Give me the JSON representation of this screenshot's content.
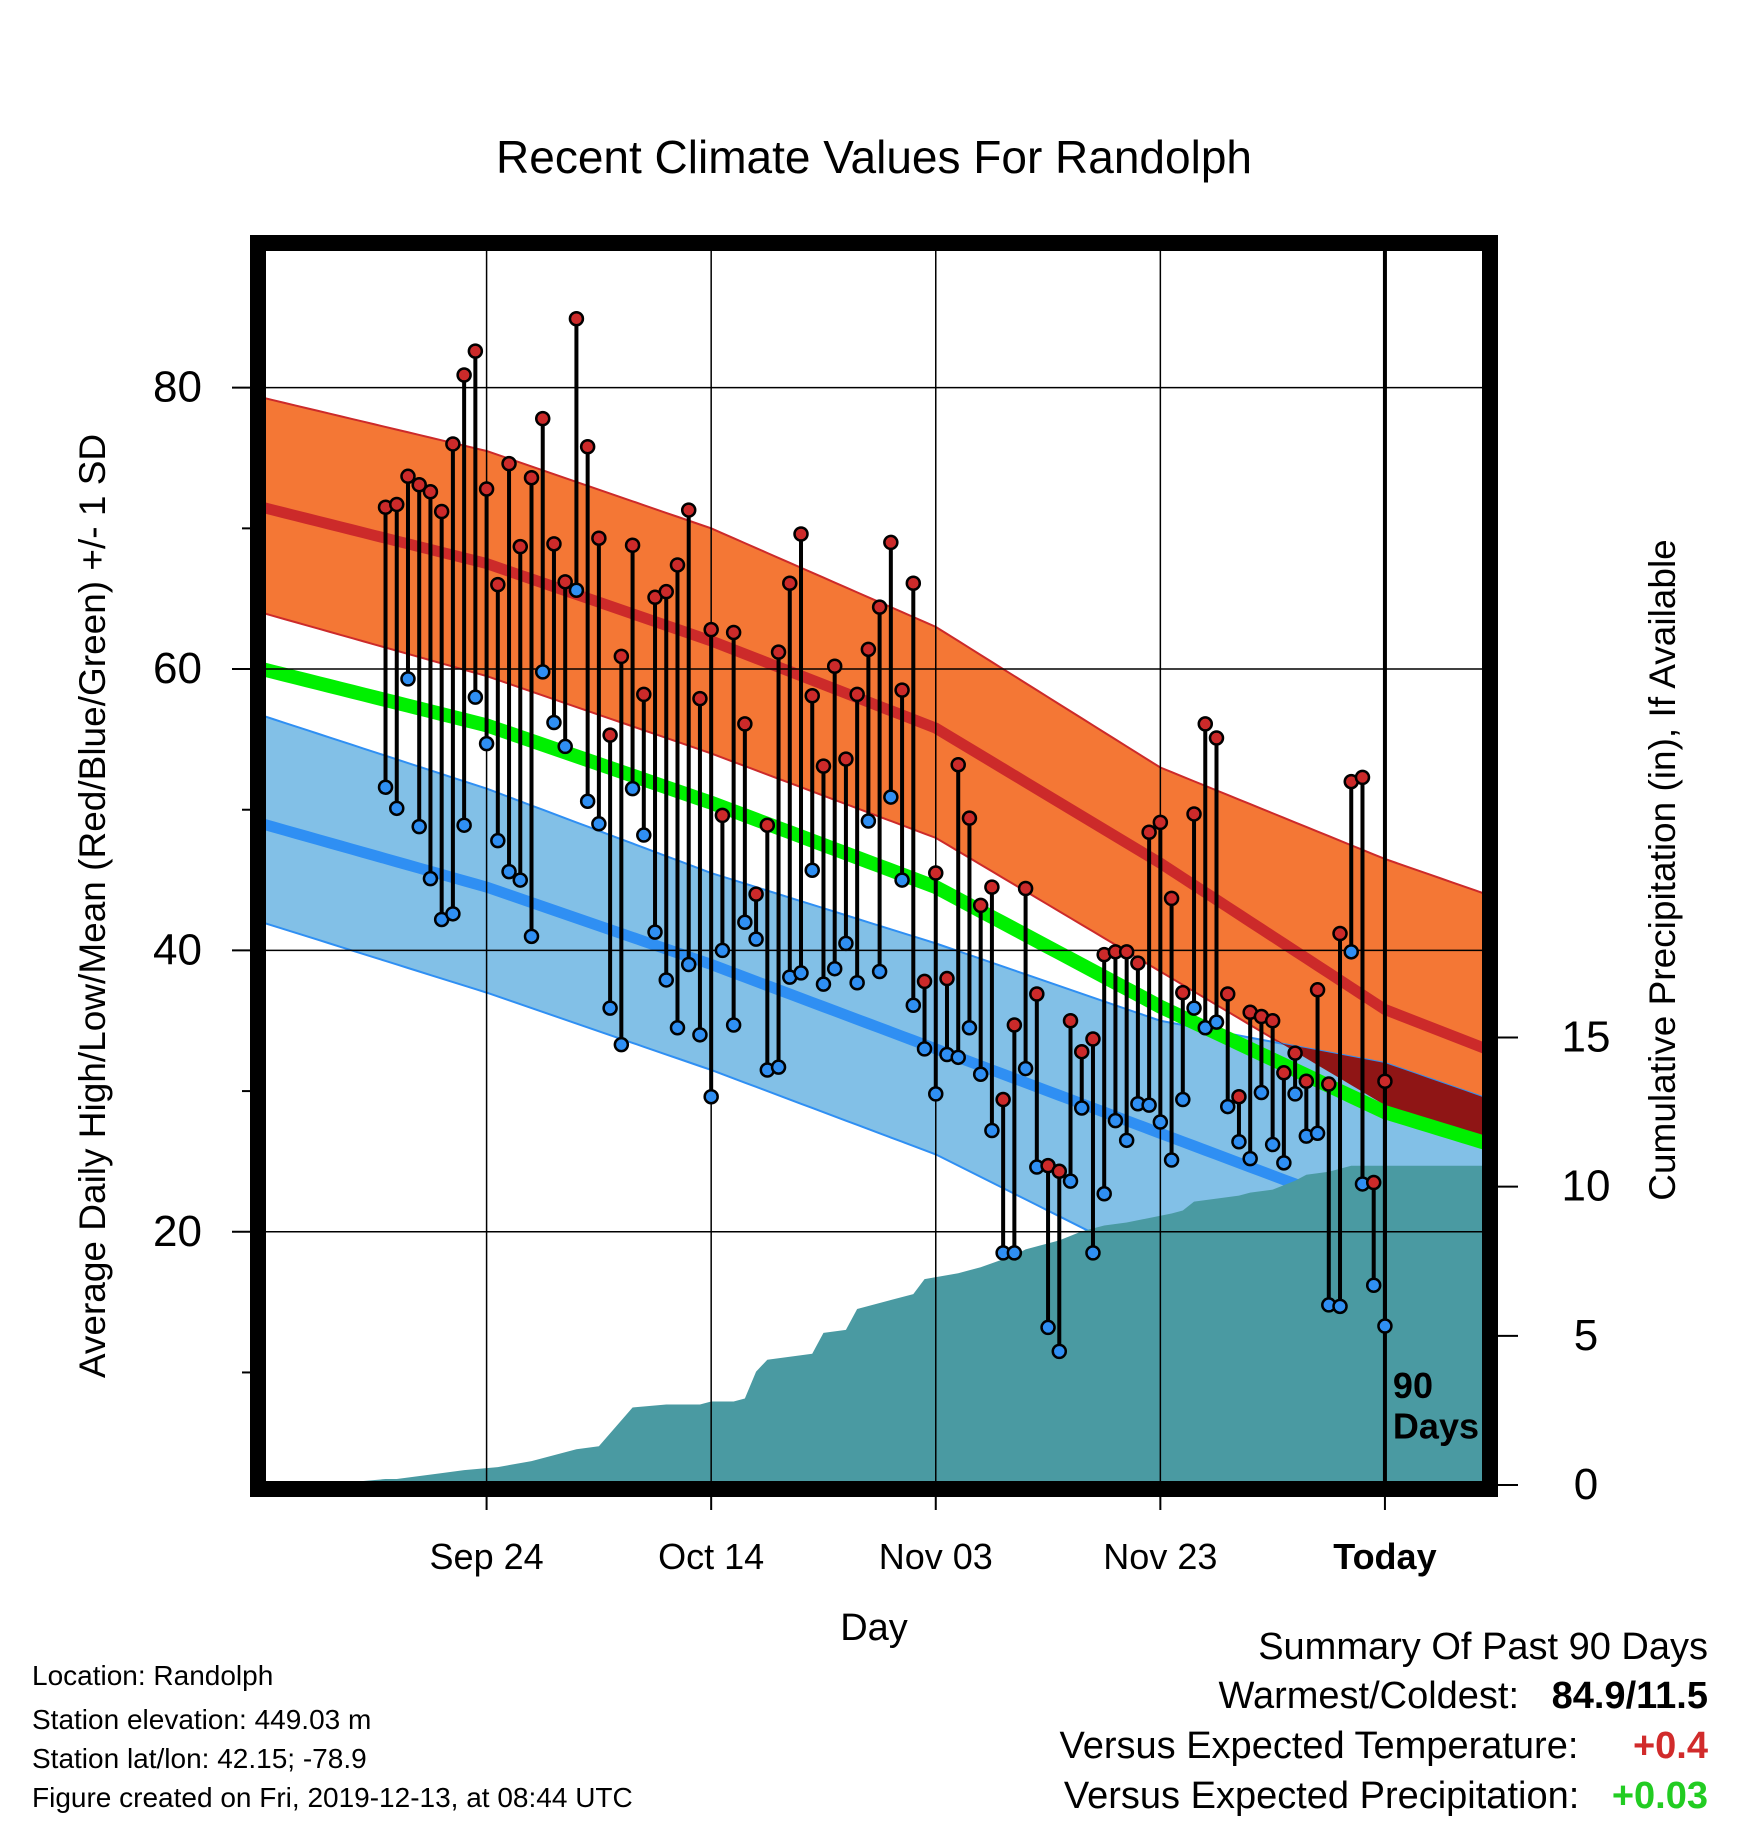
{
  "title": "Recent Climate Values For Randolph",
  "chart_data": {
    "type": "line",
    "title": "Recent Climate Values For Randolph",
    "xlabel": "Day",
    "ylabel": "Average Daily High/Low/Mean (Red/Blue/Green) +/- 1 SD",
    "y2label": "Cumulative Precipitation (in), If Available",
    "x_range": [
      -100,
      9
    ],
    "x_ticks": [
      {
        "day": -80,
        "label": "Sep 24"
      },
      {
        "day": -60,
        "label": "Oct 14"
      },
      {
        "day": -40,
        "label": "Nov 03"
      },
      {
        "day": -20,
        "label": "Nov 23"
      },
      {
        "day": 0,
        "label": "Today"
      }
    ],
    "x_units": "days relative to Today (2019-12-13)",
    "ylim": [
      2,
      90
    ],
    "y_ticks": [
      20,
      40,
      60,
      80
    ],
    "y2lim": [
      0,
      41.5
    ],
    "y2_ticks": [
      0,
      5,
      10,
      15
    ],
    "grid": true,
    "marker_label": "90 Days",
    "normal_high": {
      "day": [
        -100,
        -80,
        -60,
        -40,
        -20,
        0,
        9
      ],
      "mean": [
        71.5,
        67.5,
        62.0,
        55.8,
        46.2,
        35.8,
        33.0
      ],
      "upper": [
        79.3,
        75.5,
        70.0,
        63.0,
        53.0,
        46.5,
        44.0
      ],
      "lower": [
        64.0,
        59.5,
        54.0,
        48.0,
        38.5,
        29.0,
        26.7
      ]
    },
    "normal_mean": {
      "day": [
        -100,
        -80,
        -60,
        -40,
        -20,
        0,
        9
      ],
      "mean": [
        60.0,
        56.0,
        50.5,
        44.5,
        36.0,
        28.5,
        26.3
      ]
    },
    "normal_low": {
      "day": [
        -100,
        -80,
        -60,
        -40,
        -20,
        0,
        9
      ],
      "mean": [
        49.0,
        44.5,
        39.0,
        33.0,
        27.0,
        21.0,
        19.5
      ],
      "upper": [
        56.7,
        51.5,
        45.5,
        40.5,
        35.0,
        32.0,
        29.5
      ],
      "lower": [
        42.0,
        37.0,
        31.5,
        25.5,
        17.5,
        10.0,
        9.0
      ]
    },
    "cumulative_precipitation": {
      "day": [
        -100,
        -92,
        -89,
        -88,
        -84,
        -82,
        -79,
        -76,
        -72,
        -70,
        -67,
        -64,
        -61,
        -60,
        -58,
        -57,
        -56,
        -55,
        -51,
        -50,
        -48,
        -47,
        -44,
        -42,
        -41,
        -38,
        -36,
        -33,
        -32,
        -29,
        -27,
        -25,
        -23,
        -19,
        -18,
        -17,
        -15,
        -13,
        -12,
        -10,
        -8,
        -7,
        -5,
        -3,
        -2,
        -1,
        9
      ],
      "value": [
        0.0,
        0.1,
        0.2,
        0.2,
        0.4,
        0.5,
        0.6,
        0.8,
        1.2,
        1.3,
        2.6,
        2.7,
        2.7,
        2.8,
        2.8,
        2.9,
        3.8,
        4.2,
        4.4,
        5.1,
        5.2,
        5.9,
        6.2,
        6.4,
        6.9,
        7.1,
        7.3,
        7.7,
        7.9,
        8.2,
        8.5,
        8.7,
        8.8,
        9.1,
        9.2,
        9.5,
        9.6,
        9.7,
        9.8,
        9.9,
        10.2,
        10.4,
        10.5,
        10.7,
        10.7,
        10.7,
        10.7
      ]
    },
    "daily": {
      "day": [
        -89,
        -88,
        -87,
        -86,
        -85,
        -84,
        -83,
        -82,
        -81,
        -80,
        -79,
        -78,
        -77,
        -76,
        -75,
        -74,
        -73,
        -72,
        -71,
        -70,
        -69,
        -68,
        -67,
        -66,
        -65,
        -64,
        -63,
        -62,
        -61,
        -60,
        -59,
        -58,
        -57,
        -56,
        -55,
        -54,
        -53,
        -52,
        -51,
        -50,
        -49,
        -48,
        -47,
        -46,
        -45,
        -44,
        -43,
        -42,
        -41,
        -40,
        -39,
        -38,
        -37,
        -36,
        -35,
        -34,
        -33,
        -32,
        -31,
        -30,
        -29,
        -28,
        -27,
        -26,
        -25,
        -24,
        -23,
        -22,
        -21,
        -20,
        -19,
        -18,
        -17,
        -16,
        -15,
        -14,
        -13,
        -12,
        -11,
        -10,
        -9,
        -8,
        -7,
        -6,
        -5,
        -4,
        -3,
        -2,
        -1,
        0
      ],
      "high": [
        71.5,
        71.7,
        73.7,
        73.1,
        72.6,
        71.2,
        76.0,
        80.9,
        82.6,
        72.8,
        66.0,
        74.6,
        68.7,
        73.6,
        77.8,
        68.9,
        66.2,
        84.9,
        75.8,
        69.3,
        55.3,
        60.9,
        68.8,
        58.2,
        65.1,
        65.5,
        67.4,
        71.3,
        57.9,
        62.8,
        49.6,
        62.6,
        56.1,
        44.0,
        48.9,
        61.2,
        66.1,
        69.6,
        58.1,
        53.1,
        60.2,
        53.6,
        58.2,
        61.4,
        64.4,
        69.0,
        58.5,
        66.1,
        37.8,
        45.5,
        38.0,
        53.2,
        49.4,
        43.2,
        44.5,
        29.4,
        34.7,
        44.4,
        36.9,
        24.7,
        24.3,
        35.0,
        32.8,
        33.7,
        39.7,
        39.9,
        39.9,
        39.1,
        48.4,
        49.1,
        43.7,
        37.0,
        49.7,
        56.1,
        55.1,
        36.9,
        29.6,
        35.6,
        35.3,
        35.0,
        31.3,
        32.7,
        30.7,
        37.2,
        30.5,
        41.2,
        52.0,
        52.3,
        23.5,
        30.7
      ],
      "low": [
        51.6,
        50.1,
        59.3,
        48.8,
        45.1,
        42.2,
        42.6,
        48.9,
        58.0,
        54.7,
        47.8,
        45.6,
        45.0,
        41.0,
        59.8,
        56.2,
        54.5,
        65.6,
        50.6,
        49.0,
        35.9,
        33.3,
        51.5,
        48.2,
        41.3,
        37.9,
        34.5,
        39.0,
        34.0,
        29.6,
        40.0,
        34.7,
        42.0,
        40.8,
        31.5,
        31.7,
        38.1,
        38.4,
        45.7,
        37.6,
        38.7,
        40.5,
        37.7,
        49.2,
        38.5,
        50.9,
        45.0,
        36.1,
        33.0,
        29.8,
        32.6,
        32.4,
        34.5,
        31.2,
        27.2,
        18.5,
        18.5,
        31.6,
        24.6,
        13.2,
        11.5,
        23.6,
        28.8,
        18.5,
        22.7,
        27.9,
        26.5,
        29.1,
        29.0,
        27.8,
        25.1,
        29.4,
        35.9,
        34.5,
        34.9,
        28.9,
        26.4,
        25.2,
        29.9,
        26.2,
        24.9,
        29.8,
        26.8,
        27.0,
        14.8,
        14.7,
        39.9,
        23.4,
        16.2,
        13.3
      ]
    },
    "colors": {
      "high_band": "#f47735",
      "high_mean": "#cc2a2a",
      "low_band": "#82c0e7",
      "low_mean": "#2f8ff3",
      "overlap_band": "#8f1515",
      "mean_line": "#00f000",
      "precip": "#4a9aa2",
      "high_dot": "#cc2a2a",
      "low_dot": "#2f8ff3"
    }
  },
  "footer": {
    "location": "Location: Randolph",
    "elevation": "Station elevation: 449.03 m",
    "latlon": "Station lat/lon: 42.15; -78.9",
    "created": "Figure created on Fri, 2019-12-13, at 08:44 UTC"
  },
  "summary": {
    "heading": "Summary Of Past 90 Days",
    "warm_cold_label": "Warmest/Coldest:",
    "warm_cold_value": "84.9/11.5",
    "temp_label": "Versus Expected Temperature:",
    "temp_value": "+0.4",
    "temp_color": "#d12b2b",
    "precip_label": "Versus Expected Precipitation:",
    "precip_value": "+0.03",
    "precip_color": "#22cc22"
  }
}
